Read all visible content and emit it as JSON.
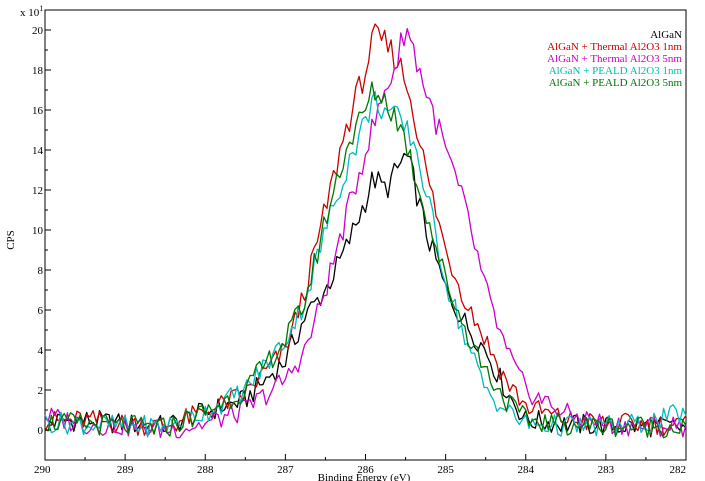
{
  "chart_data": {
    "type": "line",
    "xlabel": "Binding Energy (eV)",
    "ylabel": "CPS",
    "y_multiplier": "x 10",
    "y_multiplier_exp": "1",
    "xlim": [
      290,
      282
    ],
    "ylim": [
      -1.5,
      21
    ],
    "x_reversed": true,
    "x_ticks": [
      290,
      289,
      288,
      287,
      286,
      285,
      284,
      283,
      282
    ],
    "y_ticks": [
      0,
      2,
      4,
      6,
      8,
      10,
      12,
      14,
      16,
      18,
      20
    ],
    "legend_position": "top-right",
    "grid": false,
    "series": [
      {
        "name": "AlGaN",
        "color": "#000000",
        "x": [
          290,
          289.5,
          289,
          288.5,
          288,
          287.5,
          287,
          286.75,
          286.5,
          286.25,
          286,
          285.9,
          285.75,
          285.6,
          285.5,
          285.4,
          285.25,
          285,
          284.75,
          284.5,
          284.25,
          284,
          283.5,
          283,
          282.5,
          282
        ],
        "y": [
          0.4,
          0.5,
          0.3,
          0.2,
          0.9,
          1.5,
          3.5,
          5.7,
          7.0,
          9.0,
          11.5,
          12.6,
          12.0,
          13.0,
          13.8,
          12.5,
          10.0,
          7.0,
          5.3,
          4.0,
          2.0,
          0.5,
          0.3,
          0.2,
          0.2,
          0.1
        ]
      },
      {
        "name": "AlGaN + Thermal Al2O3 1nm",
        "color": "#cc0000",
        "x": [
          290,
          289.5,
          289,
          288.5,
          288,
          287.5,
          287,
          286.75,
          286.5,
          286.25,
          286,
          285.9,
          285.75,
          285.6,
          285.5,
          285.4,
          285.25,
          285,
          284.75,
          284.5,
          284.25,
          284,
          283.5,
          283,
          282.5,
          282
        ],
        "y": [
          0.4,
          0.5,
          0.3,
          0.2,
          0.9,
          1.8,
          4.0,
          7.0,
          11.0,
          15.0,
          18.0,
          19.6,
          19.3,
          18.5,
          17.5,
          16.0,
          13.0,
          9.0,
          6.5,
          4.5,
          2.5,
          1.2,
          0.5,
          0.3,
          0.3,
          0.2
        ]
      },
      {
        "name": "AlGaN + Thermal Al2O3 5nm",
        "color": "#cc00cc",
        "x": [
          290,
          289.5,
          289,
          288.5,
          288,
          287.5,
          287,
          286.75,
          286.5,
          286.25,
          286,
          285.75,
          285.6,
          285.5,
          285.4,
          285.25,
          285,
          284.75,
          284.5,
          284.25,
          284,
          283.5,
          283,
          282.5,
          282
        ],
        "y": [
          0.7,
          0.3,
          0.2,
          0.0,
          0.3,
          1.0,
          2.5,
          4.0,
          7.0,
          10.5,
          14.0,
          17.0,
          18.5,
          20.3,
          19.0,
          17.0,
          14.0,
          11.0,
          7.0,
          4.0,
          2.0,
          0.8,
          0.3,
          0.2,
          0.2
        ]
      },
      {
        "name": "AlGaN + PEALD Al2O3 1nm",
        "color": "#00bbbb",
        "x": [
          290,
          289.5,
          289,
          288.5,
          288,
          287.5,
          287,
          286.75,
          286.5,
          286.25,
          286,
          285.9,
          285.75,
          285.6,
          285.5,
          285.4,
          285.25,
          285,
          284.75,
          284.5,
          284.25,
          284,
          283.5,
          283,
          282.5,
          282
        ],
        "y": [
          0.4,
          0.3,
          0.2,
          0.2,
          0.9,
          2.0,
          4.5,
          6.5,
          10.0,
          13.0,
          15.5,
          16.5,
          16.0,
          15.5,
          15.0,
          14.5,
          12.0,
          7.5,
          4.5,
          2.0,
          1.0,
          0.3,
          0.2,
          0.2,
          0.3,
          0.9
        ]
      },
      {
        "name": "AlGaN + PEALD Al2O3 5nm",
        "color": "#007700",
        "x": [
          290,
          289.5,
          289,
          288.5,
          288,
          287.5,
          287,
          286.75,
          286.5,
          286.25,
          286,
          285.9,
          285.75,
          285.6,
          285.5,
          285.4,
          285.25,
          285,
          284.75,
          284.5,
          284.25,
          284,
          283.5,
          283,
          282.5,
          282
        ],
        "y": [
          0.4,
          0.3,
          0.2,
          0.1,
          0.9,
          2.0,
          4.5,
          6.5,
          10.5,
          14.0,
          16.0,
          17.0,
          16.5,
          15.5,
          14.5,
          13.0,
          11.0,
          7.5,
          5.0,
          3.0,
          1.5,
          0.5,
          0.3,
          0.2,
          0.2,
          0.1
        ]
      }
    ]
  }
}
